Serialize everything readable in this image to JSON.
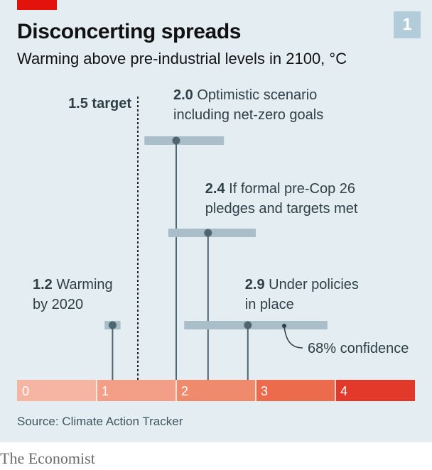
{
  "title": "Disconcerting spreads",
  "subtitle": "Warming above pre-industrial levels in 2100, °C",
  "chart_number": "1",
  "source": "Source: Climate Action Tracker",
  "brand": "The Economist",
  "colors": {
    "background": "#e3edf2",
    "accent": "#e3120b",
    "range_bar": "#a9bec8",
    "stem": "#4e6670",
    "scale": [
      "#f5b5a2",
      "#f39e86",
      "#f08a6c",
      "#ec6b4c",
      "#e3392b"
    ]
  },
  "chart_data": {
    "type": "range",
    "title": "Disconcerting spreads",
    "xlabel": "Warming above pre-industrial levels in 2100, °C",
    "xlim": [
      0,
      5
    ],
    "ticks": [
      "0",
      "1",
      "2",
      "3",
      "4"
    ],
    "target": {
      "value": 1.5,
      "label": "1.5 target"
    },
    "range_note": "68% confidence",
    "points": [
      {
        "value": 1.2,
        "value_label": "1.2",
        "label_lines": [
          "Warming",
          "by 2020"
        ],
        "low": 1.1,
        "high": 1.3
      },
      {
        "value": 2.0,
        "value_label": "2.0",
        "label_lines": [
          "Optimistic scenario",
          "including net-zero goals"
        ],
        "low": 1.6,
        "high": 2.6
      },
      {
        "value": 2.4,
        "value_label": "2.4",
        "label_lines": [
          "If formal pre-Cop 26",
          "pledges and targets met"
        ],
        "low": 1.9,
        "high": 3.0
      },
      {
        "value": 2.9,
        "value_label": "2.9",
        "label_lines": [
          "Under policies",
          "in place"
        ],
        "low": 2.1,
        "high": 3.9
      }
    ]
  }
}
